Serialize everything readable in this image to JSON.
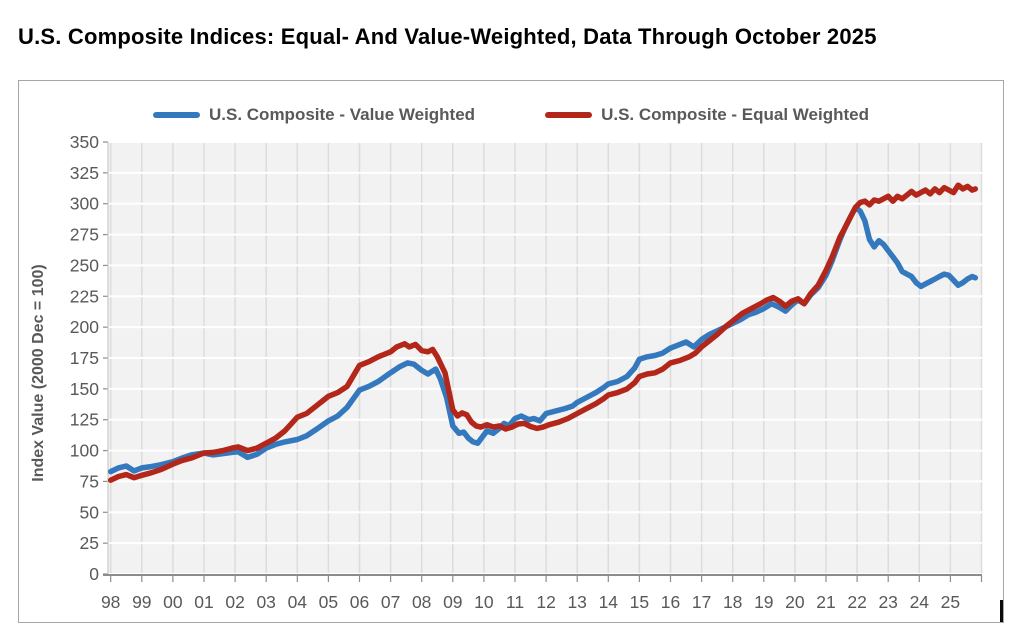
{
  "page": {
    "title": "U.S. Composite Indices: Equal- And Value-Weighted, Data Through October 2025"
  },
  "colors": {
    "title": "#000000",
    "card_border": "#A6A6A6",
    "plot_bg": "#F2F2F2",
    "h_gridline": "#FFFFFF",
    "v_gridline": "#DCDCDC",
    "axis_line": "#8C8C8C",
    "left_axis_line": "#C9C9C9",
    "tick_label": "#595959",
    "legend_text": "#595959",
    "value_weighted": "#3478BD",
    "equal_weighted": "#B3261A"
  },
  "chart_data": {
    "type": "line",
    "title": "U.S. Composite Indices: Equal- And Value-Weighted, Data Through October 2025",
    "xlabel": "",
    "ylabel": "Index Value (2000 Dec = 100)",
    "ylim": [
      0,
      350
    ],
    "y_ticks": [
      0,
      25,
      50,
      75,
      100,
      125,
      150,
      175,
      200,
      225,
      250,
      275,
      300,
      325,
      350
    ],
    "x_tick_labels": [
      "98",
      "99",
      "00",
      "01",
      "02",
      "03",
      "04",
      "05",
      "06",
      "07",
      "08",
      "09",
      "10",
      "11",
      "12",
      "13",
      "14",
      "15",
      "16",
      "17",
      "18",
      "19",
      "20",
      "21",
      "22",
      "23",
      "24",
      "25"
    ],
    "x_start_year": 1998,
    "grid": {
      "horizontal": true,
      "vertical": true
    },
    "legend_position": "top",
    "series": [
      {
        "name": "U.S. Composite - Value Weighted",
        "color": "#3478BD",
        "points": [
          [
            1998.0,
            83
          ],
          [
            1998.25,
            86
          ],
          [
            1998.5,
            87.5
          ],
          [
            1998.75,
            83.5
          ],
          [
            1999.0,
            86
          ],
          [
            1999.3,
            87
          ],
          [
            1999.6,
            88.5
          ],
          [
            2000.0,
            91
          ],
          [
            2000.3,
            94
          ],
          [
            2000.6,
            96.5
          ],
          [
            2001.0,
            98
          ],
          [
            2001.3,
            96.5
          ],
          [
            2001.6,
            97.5
          ],
          [
            2001.9,
            98.5
          ],
          [
            2002.1,
            99
          ],
          [
            2002.4,
            94.5
          ],
          [
            2002.7,
            97
          ],
          [
            2003.0,
            102
          ],
          [
            2003.3,
            105
          ],
          [
            2003.6,
            107
          ],
          [
            2004.0,
            109
          ],
          [
            2004.3,
            112
          ],
          [
            2004.6,
            117
          ],
          [
            2005.0,
            124
          ],
          [
            2005.3,
            128
          ],
          [
            2005.6,
            135
          ],
          [
            2006.0,
            149
          ],
          [
            2006.3,
            152
          ],
          [
            2006.6,
            156
          ],
          [
            2007.0,
            163
          ],
          [
            2007.3,
            168
          ],
          [
            2007.55,
            171
          ],
          [
            2007.75,
            170
          ],
          [
            2008.0,
            165
          ],
          [
            2008.2,
            162
          ],
          [
            2008.45,
            166
          ],
          [
            2008.6,
            158
          ],
          [
            2008.8,
            143
          ],
          [
            2009.0,
            120
          ],
          [
            2009.2,
            114
          ],
          [
            2009.35,
            115
          ],
          [
            2009.5,
            110
          ],
          [
            2009.65,
            107
          ],
          [
            2009.8,
            106
          ],
          [
            2009.95,
            111
          ],
          [
            2010.1,
            116
          ],
          [
            2010.3,
            114
          ],
          [
            2010.5,
            118
          ],
          [
            2010.65,
            122
          ],
          [
            2010.8,
            120
          ],
          [
            2011.0,
            126
          ],
          [
            2011.2,
            128
          ],
          [
            2011.45,
            125
          ],
          [
            2011.6,
            126
          ],
          [
            2011.8,
            124
          ],
          [
            2012.0,
            130
          ],
          [
            2012.3,
            132
          ],
          [
            2012.6,
            134
          ],
          [
            2012.85,
            136
          ],
          [
            2013.0,
            139
          ],
          [
            2013.3,
            143
          ],
          [
            2013.6,
            147
          ],
          [
            2013.85,
            151
          ],
          [
            2014.0,
            154
          ],
          [
            2014.3,
            156
          ],
          [
            2014.6,
            160
          ],
          [
            2014.85,
            167
          ],
          [
            2015.0,
            174
          ],
          [
            2015.25,
            176
          ],
          [
            2015.5,
            177
          ],
          [
            2015.75,
            179
          ],
          [
            2016.0,
            183
          ],
          [
            2016.3,
            186
          ],
          [
            2016.5,
            188
          ],
          [
            2016.75,
            184
          ],
          [
            2017.0,
            190
          ],
          [
            2017.25,
            194
          ],
          [
            2017.5,
            197
          ],
          [
            2017.75,
            200
          ],
          [
            2018.0,
            203
          ],
          [
            2018.25,
            206
          ],
          [
            2018.5,
            210
          ],
          [
            2018.75,
            212
          ],
          [
            2019.0,
            215
          ],
          [
            2019.25,
            219
          ],
          [
            2019.5,
            216
          ],
          [
            2019.7,
            213
          ],
          [
            2019.9,
            218
          ],
          [
            2020.1,
            222
          ],
          [
            2020.3,
            219
          ],
          [
            2020.5,
            226
          ],
          [
            2020.75,
            232
          ],
          [
            2021.0,
            242
          ],
          [
            2021.2,
            254
          ],
          [
            2021.45,
            271
          ],
          [
            2021.6,
            280
          ],
          [
            2021.8,
            290
          ],
          [
            2021.95,
            297
          ],
          [
            2022.1,
            294
          ],
          [
            2022.25,
            286
          ],
          [
            2022.4,
            271
          ],
          [
            2022.55,
            265
          ],
          [
            2022.7,
            270
          ],
          [
            2022.85,
            267
          ],
          [
            2023.0,
            262
          ],
          [
            2023.15,
            257
          ],
          [
            2023.3,
            252
          ],
          [
            2023.45,
            245
          ],
          [
            2023.6,
            243
          ],
          [
            2023.75,
            241
          ],
          [
            2023.9,
            236
          ],
          [
            2024.05,
            233
          ],
          [
            2024.2,
            235
          ],
          [
            2024.35,
            237
          ],
          [
            2024.5,
            239
          ],
          [
            2024.65,
            241
          ],
          [
            2024.8,
            243
          ],
          [
            2024.95,
            242
          ],
          [
            2025.1,
            238
          ],
          [
            2025.25,
            234
          ],
          [
            2025.4,
            236
          ],
          [
            2025.55,
            239
          ],
          [
            2025.7,
            241
          ],
          [
            2025.8,
            240
          ]
        ]
      },
      {
        "name": "U.S. Composite - Equal Weighted",
        "color": "#B3261A",
        "points": [
          [
            1998.0,
            76
          ],
          [
            1998.25,
            79
          ],
          [
            1998.5,
            80.5
          ],
          [
            1998.75,
            78
          ],
          [
            1999.0,
            80
          ],
          [
            1999.3,
            82
          ],
          [
            1999.6,
            84.5
          ],
          [
            2000.0,
            89
          ],
          [
            2000.3,
            92
          ],
          [
            2000.6,
            94
          ],
          [
            2001.0,
            98
          ],
          [
            2001.3,
            98.5
          ],
          [
            2001.6,
            100
          ],
          [
            2001.9,
            102
          ],
          [
            2002.1,
            103
          ],
          [
            2002.4,
            100
          ],
          [
            2002.7,
            102
          ],
          [
            2003.0,
            106
          ],
          [
            2003.3,
            110
          ],
          [
            2003.6,
            116
          ],
          [
            2004.0,
            127
          ],
          [
            2004.3,
            130
          ],
          [
            2004.6,
            136
          ],
          [
            2005.0,
            144
          ],
          [
            2005.3,
            147
          ],
          [
            2005.6,
            152
          ],
          [
            2006.0,
            169
          ],
          [
            2006.3,
            172
          ],
          [
            2006.6,
            176
          ],
          [
            2007.0,
            180
          ],
          [
            2007.2,
            184
          ],
          [
            2007.45,
            186.5
          ],
          [
            2007.6,
            184
          ],
          [
            2007.8,
            186
          ],
          [
            2008.0,
            181
          ],
          [
            2008.2,
            180
          ],
          [
            2008.35,
            182
          ],
          [
            2008.5,
            176
          ],
          [
            2008.75,
            163
          ],
          [
            2009.0,
            133
          ],
          [
            2009.15,
            128
          ],
          [
            2009.3,
            130.5
          ],
          [
            2009.45,
            129
          ],
          [
            2009.6,
            123
          ],
          [
            2009.75,
            120
          ],
          [
            2009.9,
            119
          ],
          [
            2010.1,
            121
          ],
          [
            2010.3,
            119
          ],
          [
            2010.5,
            120
          ],
          [
            2010.7,
            117.5
          ],
          [
            2010.9,
            119
          ],
          [
            2011.1,
            121.5
          ],
          [
            2011.3,
            122
          ],
          [
            2011.5,
            119.5
          ],
          [
            2011.7,
            118
          ],
          [
            2011.9,
            119
          ],
          [
            2012.1,
            121
          ],
          [
            2012.4,
            123
          ],
          [
            2012.7,
            126
          ],
          [
            2013.0,
            130
          ],
          [
            2013.3,
            134
          ],
          [
            2013.6,
            138
          ],
          [
            2013.85,
            142
          ],
          [
            2014.0,
            145
          ],
          [
            2014.3,
            147
          ],
          [
            2014.6,
            150
          ],
          [
            2014.85,
            155
          ],
          [
            2015.0,
            160
          ],
          [
            2015.25,
            162
          ],
          [
            2015.5,
            163
          ],
          [
            2015.75,
            166
          ],
          [
            2016.0,
            171
          ],
          [
            2016.3,
            173
          ],
          [
            2016.6,
            176
          ],
          [
            2016.8,
            179
          ],
          [
            2017.0,
            184
          ],
          [
            2017.25,
            189
          ],
          [
            2017.5,
            194
          ],
          [
            2017.8,
            201
          ],
          [
            2018.0,
            205
          ],
          [
            2018.3,
            211
          ],
          [
            2018.6,
            215
          ],
          [
            2018.9,
            219
          ],
          [
            2019.1,
            222
          ],
          [
            2019.3,
            224
          ],
          [
            2019.5,
            221
          ],
          [
            2019.7,
            217
          ],
          [
            2019.9,
            221
          ],
          [
            2020.1,
            223
          ],
          [
            2020.3,
            219
          ],
          [
            2020.5,
            227
          ],
          [
            2020.75,
            234
          ],
          [
            2021.0,
            246
          ],
          [
            2021.2,
            257
          ],
          [
            2021.45,
            273
          ],
          [
            2021.6,
            280
          ],
          [
            2021.8,
            290
          ],
          [
            2021.95,
            297
          ],
          [
            2022.1,
            301
          ],
          [
            2022.25,
            302
          ],
          [
            2022.4,
            299
          ],
          [
            2022.55,
            303
          ],
          [
            2022.7,
            302
          ],
          [
            2022.85,
            304
          ],
          [
            2023.0,
            306
          ],
          [
            2023.15,
            302
          ],
          [
            2023.3,
            306
          ],
          [
            2023.45,
            304
          ],
          [
            2023.6,
            307
          ],
          [
            2023.75,
            310
          ],
          [
            2023.9,
            307
          ],
          [
            2024.05,
            309
          ],
          [
            2024.2,
            311
          ],
          [
            2024.35,
            308
          ],
          [
            2024.5,
            312
          ],
          [
            2024.65,
            309
          ],
          [
            2024.8,
            313
          ],
          [
            2024.95,
            311
          ],
          [
            2025.1,
            309
          ],
          [
            2025.25,
            315
          ],
          [
            2025.4,
            312
          ],
          [
            2025.55,
            314
          ],
          [
            2025.7,
            311
          ],
          [
            2025.8,
            312
          ]
        ]
      }
    ]
  }
}
